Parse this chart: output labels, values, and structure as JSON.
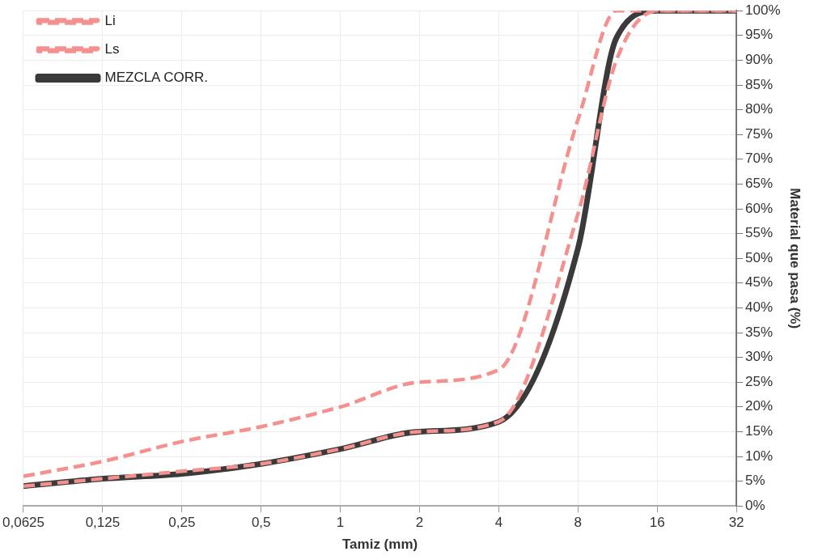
{
  "chart_data": {
    "type": "line",
    "xlabel": "Tamiz (mm)",
    "ylabel": "Material que pasa (%)",
    "x": [
      0.0625,
      0.125,
      0.25,
      0.5,
      1,
      2,
      4,
      8,
      11.2,
      16,
      32
    ],
    "series": [
      {
        "name": "Li",
        "color": "#f4908e",
        "line_style": "dashed",
        "values": [
          6,
          9,
          13,
          16,
          20,
          25,
          27.5,
          78,
          100,
          100,
          100
        ]
      },
      {
        "name": "Ls",
        "color": "#f4908e",
        "line_style": "dashed",
        "values": [
          4,
          5.5,
          7,
          8.5,
          11.5,
          15,
          17,
          59,
          90,
          100,
          100
        ]
      },
      {
        "name": "MEZCLA CORR.",
        "color": "#3a3a3a",
        "line_style": "solid",
        "values": [
          4,
          5.5,
          6.5,
          8.5,
          11.5,
          15,
          17,
          52,
          94.5,
          100,
          100
        ]
      }
    ],
    "log": "x",
    "xlim": [
      0.0625,
      32
    ],
    "xticks": [
      {
        "value": 0.0625,
        "label": "0,0625"
      },
      {
        "value": 0.125,
        "label": "0,125"
      },
      {
        "value": 0.25,
        "label": "0,25"
      },
      {
        "value": 0.5,
        "label": "0,5"
      },
      1,
      2,
      4,
      8,
      16,
      32
    ],
    "ylim": [
      0,
      100
    ],
    "yticks": [
      {
        "value": 0,
        "label": "0%"
      },
      {
        "value": 5,
        "label": "5%"
      },
      {
        "value": 10,
        "label": "10%"
      },
      {
        "value": 15,
        "label": "15%"
      },
      {
        "value": 20,
        "label": "20%"
      },
      {
        "value": 25,
        "label": "25%"
      },
      {
        "value": 30,
        "label": "30%"
      },
      {
        "value": 35,
        "label": "35%"
      },
      {
        "value": 40,
        "label": "40%"
      },
      {
        "value": 45,
        "label": "45%"
      },
      {
        "value": 50,
        "label": "50%"
      },
      {
        "value": 55,
        "label": "55%"
      },
      {
        "value": 60,
        "label": "60%"
      },
      {
        "value": 65,
        "label": "65%"
      },
      {
        "value": 70,
        "label": "70%"
      },
      {
        "value": 75,
        "label": "75%"
      },
      {
        "value": 80,
        "label": "80%"
      },
      {
        "value": 85,
        "label": "85%"
      },
      {
        "value": 90,
        "label": "90%"
      },
      {
        "value": 95,
        "label": "95%"
      },
      {
        "value": 100,
        "label": "100%"
      }
    ],
    "grid": true,
    "legend": "top left",
    "marker": "none"
  }
}
